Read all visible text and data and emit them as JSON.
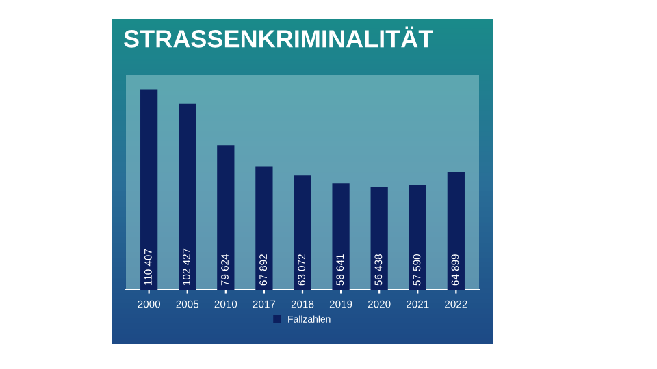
{
  "chart_data": {
    "type": "bar",
    "title": "STRASSENKRIMINALITÄT",
    "categories": [
      "2000",
      "2005",
      "2010",
      "2017",
      "2018",
      "2019",
      "2020",
      "2021",
      "2022"
    ],
    "series": [
      {
        "name": "Fallzahlen",
        "color": "#0c1f5e",
        "values": [
          110407,
          102427,
          79624,
          67892,
          63072,
          58641,
          56438,
          57590,
          64899
        ],
        "value_labels": [
          "110 407",
          "102 427",
          "79 624",
          "67 892",
          "63 072",
          "58 641",
          "56 438",
          "57 590",
          "64 899"
        ]
      }
    ],
    "legend": "bottom",
    "grid": false
  }
}
